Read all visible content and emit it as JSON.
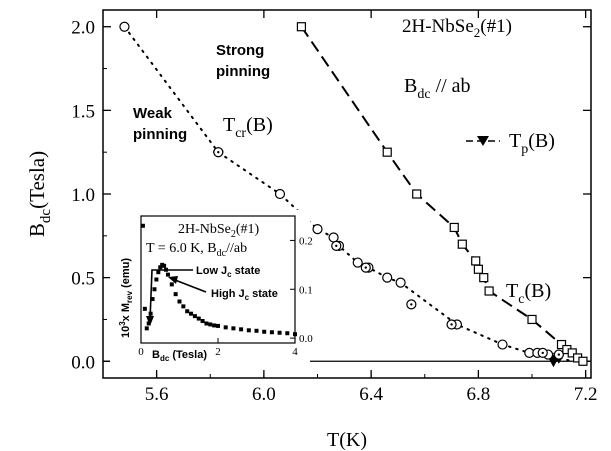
{
  "chart_data": [
    {
      "type": "scatter",
      "title": "2H-NbSe",
      "title_sub": "2",
      "title_suffix": "(#1)",
      "xlabel": "T(K)",
      "ylabel_main": "B",
      "ylabel_sub": "dc",
      "ylabel_unit": "(Tesla)",
      "xlim": [
        5.4,
        7.22
      ],
      "ylim": [
        -0.1,
        2.1
      ],
      "xticks": [
        5.6,
        6.0,
        6.4,
        6.8,
        7.2
      ],
      "xtick_labels": [
        "5.6",
        "6.0",
        "6.4",
        "6.8",
        "7.2"
      ],
      "yticks": [
        0.0,
        0.5,
        1.0,
        1.5,
        2.0
      ],
      "ytick_labels": [
        "0.0",
        "0.5",
        "1.0",
        "1.5",
        "2.0"
      ],
      "field_label_main": "B",
      "field_label_sub": "dc",
      "field_label_rest": " // ab",
      "annotations": {
        "strong_line1": "Strong",
        "strong_line2": "pinning",
        "weak_line1": "Weak",
        "weak_line2": "pinning",
        "tcr_main": "T",
        "tcr_sub": "cr",
        "tcr_rest": "(B)",
        "tc_main": "T",
        "tc_sub": "c",
        "tc_rest": "(B)"
      },
      "series": [
        {
          "name": "T_p(B)",
          "legend_main": "T",
          "legend_sub": "p",
          "legend_rest": "(B)",
          "marker": "triangle-down",
          "x": [
            7.08,
            7.1
          ],
          "y": [
            0.0,
            0.02
          ]
        },
        {
          "marker": "square-open",
          "x": [
            6.14,
            6.46,
            6.57,
            6.71,
            6.74,
            6.79,
            6.8,
            6.82,
            6.84,
            7.0,
            7.11,
            7.13,
            7.15,
            7.17,
            7.19
          ],
          "y": [
            2.0,
            1.25,
            1.0,
            0.8,
            0.7,
            0.6,
            0.55,
            0.5,
            0.42,
            0.25,
            0.1,
            0.07,
            0.05,
            0.02,
            0.0
          ]
        },
        {
          "marker": "circle-open",
          "x": [
            5.48,
            5.83,
            6.06,
            6.2,
            6.26,
            6.28,
            6.35,
            6.39,
            6.46,
            6.51,
            6.72,
            6.89,
            6.99,
            7.02,
            7.06
          ],
          "y": [
            2.0,
            1.25,
            1.0,
            0.79,
            0.74,
            0.69,
            0.59,
            0.56,
            0.5,
            0.47,
            0.22,
            0.1,
            0.05,
            0.05,
            0.04
          ]
        },
        {
          "marker": "circle-dot",
          "x": [
            5.83,
            6.27,
            6.38,
            6.55,
            6.7,
            7.04,
            7.1
          ],
          "y": [
            1.25,
            0.69,
            0.56,
            0.34,
            0.22,
            0.05,
            0.04
          ]
        }
      ],
      "fits": [
        {
          "style": "dotted",
          "label": "T_cr(B)"
        },
        {
          "style": "dashed",
          "label": "T_c(B)"
        }
      ]
    },
    {
      "type": "scatter",
      "title_line1_main": "2H-NbSe",
      "title_line1_sub": "2",
      "title_line1_rest": "(#1)",
      "title_line2_a": "T = 6.0 K, B",
      "title_line2_sub": "dc",
      "title_line2_rest": "//ab",
      "xlabel_main": "B",
      "xlabel_sub": "dc",
      "xlabel_rest": " (Tesla)",
      "ylabel_a": "10",
      "ylabel_sup": "3",
      "ylabel_b": "x M",
      "ylabel_sub": "rev",
      "ylabel_c": " (emu)",
      "xlim": [
        0,
        4
      ],
      "ylim": [
        -0.01,
        0.25
      ],
      "xticks": [
        0,
        2,
        4
      ],
      "xtick_labels": [
        "0",
        "2",
        "4"
      ],
      "yticks": [
        0.0,
        0.1,
        0.2
      ],
      "ytick_labels": [
        "0.0",
        "0.1",
        "0.2"
      ],
      "annotations": {
        "low_a": "Low J",
        "low_sub": "c",
        "low_rest": " state",
        "high_a": "High J",
        "high_sub": "c",
        "high_rest": " state"
      },
      "series": [
        {
          "marker": "square-filled",
          "x": [
            0.05,
            0.1,
            0.15,
            0.2,
            0.25,
            0.3,
            0.35,
            0.4,
            0.45,
            0.5,
            0.55,
            0.6,
            0.65,
            0.7,
            0.8,
            0.9,
            1.0,
            1.1,
            1.2,
            1.3,
            1.4,
            1.5,
            1.6,
            1.7,
            1.8,
            1.9,
            2.0,
            2.2,
            2.4,
            2.6,
            2.8,
            3.0,
            3.2,
            3.4,
            3.6,
            3.8,
            4.0
          ],
          "y": [
            0.23,
            0.06,
            0.02,
            0.03,
            0.05,
            0.08,
            0.1,
            0.12,
            0.135,
            0.145,
            0.15,
            0.148,
            0.14,
            0.13,
            0.11,
            0.09,
            0.075,
            0.065,
            0.055,
            0.05,
            0.045,
            0.04,
            0.035,
            0.03,
            0.028,
            0.026,
            0.025,
            0.022,
            0.02,
            0.018,
            0.016,
            0.015,
            0.013,
            0.012,
            0.011,
            0.01,
            0.008
          ]
        }
      ]
    }
  ]
}
